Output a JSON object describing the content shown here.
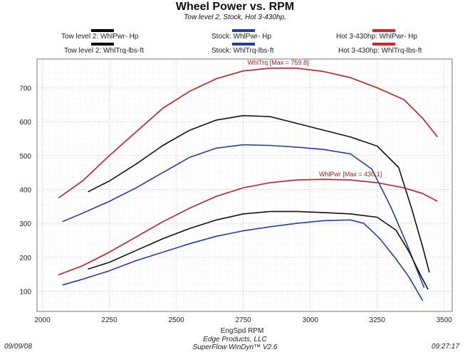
{
  "chart_data": {
    "type": "line",
    "title": "Wheel Power vs. RPM",
    "subtitle": "Tow level 2, Stock, Hot 3-430hp,",
    "xlabel": "EngSpd  RPM",
    "ylabel": "",
    "xlim": [
      1980,
      3530
    ],
    "ylim": [
      40,
      785
    ],
    "xticks": [
      2000,
      2250,
      2500,
      2750,
      3000,
      3250,
      3500
    ],
    "yticks": [
      100,
      200,
      300,
      400,
      500,
      600,
      700
    ],
    "grid": true,
    "legend": [
      {
        "label": "Tow level 2: WhlPwr-  Hp",
        "color": "#000000"
      },
      {
        "label": "Stock: WhlPwr-  Hp",
        "color": "#1f3fb0"
      },
      {
        "label": "Hot 3-430hp: WhlPwr-  Hp",
        "color": "#e02020"
      },
      {
        "label": "Tow level 2: WhlTrq-lbs-ft",
        "color": "#000000"
      },
      {
        "label": "Stock: WhlTrq-lbs-ft",
        "color": "#1f3fb0"
      },
      {
        "label": "Hot 3-430hp: WhlTrq-lbs-ft",
        "color": "#e02020"
      }
    ],
    "series": [
      {
        "name": "Hot 3-430hp: WhlTrq-lbs-ft",
        "color": "#cc1a1a",
        "x": [
          2060,
          2150,
          2250,
          2350,
          2450,
          2550,
          2650,
          2750,
          2850,
          2950,
          3050,
          3150,
          3250,
          3350,
          3420,
          3475
        ],
        "y": [
          375,
          425,
          500,
          570,
          640,
          690,
          727,
          750,
          758,
          758,
          748,
          730,
          700,
          665,
          610,
          555
        ]
      },
      {
        "name": "Tow level 2: WhlTrq-lbs-ft",
        "color": "#111111",
        "x": [
          2170,
          2250,
          2350,
          2450,
          2550,
          2650,
          2750,
          2850,
          2950,
          3050,
          3150,
          3250,
          3330,
          3380,
          3420,
          3445
        ],
        "y": [
          393,
          425,
          475,
          530,
          575,
          605,
          618,
          615,
          595,
          575,
          555,
          528,
          465,
          340,
          230,
          155
        ]
      },
      {
        "name": "Stock: WhlTrq-lbs-ft",
        "color": "#1f3fb0",
        "x": [
          2075,
          2150,
          2250,
          2350,
          2450,
          2550,
          2650,
          2750,
          2850,
          2950,
          3050,
          3150,
          3230,
          3300,
          3360,
          3400,
          3425
        ],
        "y": [
          305,
          330,
          365,
          405,
          450,
          495,
          522,
          532,
          530,
          525,
          518,
          505,
          460,
          350,
          240,
          160,
          110
        ]
      },
      {
        "name": "Hot 3-430hp: WhlPwr-  Hp",
        "color": "#cc1a1a",
        "x": [
          2060,
          2150,
          2250,
          2350,
          2450,
          2550,
          2650,
          2750,
          2850,
          2950,
          3050,
          3150,
          3250,
          3350,
          3420,
          3475
        ],
        "y": [
          148,
          175,
          215,
          260,
          305,
          345,
          380,
          405,
          420,
          428,
          430,
          428,
          420,
          405,
          388,
          365
        ]
      },
      {
        "name": "Tow level 2: WhlPwr-  Hp",
        "color": "#111111",
        "x": [
          2170,
          2250,
          2350,
          2450,
          2550,
          2650,
          2750,
          2850,
          2950,
          3050,
          3150,
          3250,
          3320,
          3370,
          3410,
          3440
        ],
        "y": [
          165,
          185,
          220,
          255,
          285,
          310,
          328,
          335,
          335,
          332,
          328,
          318,
          280,
          215,
          150,
          105
        ]
      },
      {
        "name": "Stock: WhlPwr-  Hp",
        "color": "#1f3fb0",
        "x": [
          2075,
          2150,
          2250,
          2350,
          2450,
          2550,
          2650,
          2750,
          2850,
          2950,
          3050,
          3150,
          3200,
          3260,
          3320,
          3370,
          3420
        ],
        "y": [
          118,
          135,
          160,
          190,
          215,
          240,
          262,
          278,
          290,
          300,
          308,
          310,
          300,
          255,
          195,
          140,
          72
        ]
      }
    ],
    "annotations": [
      {
        "text": "WhlTrq [Max = 759.8]",
        "x": 2880,
        "y": 759.8,
        "color": "#b02020"
      },
      {
        "text": "WhlPwr [Max = 430.1]",
        "x": 3150,
        "y": 430.1,
        "color": "#b02020"
      }
    ]
  },
  "footer": {
    "date": "09/09/08",
    "company": "Edge Products, LLC",
    "software": "SuperFlow WinDyn™ V2.6",
    "time": "09:27:17"
  }
}
